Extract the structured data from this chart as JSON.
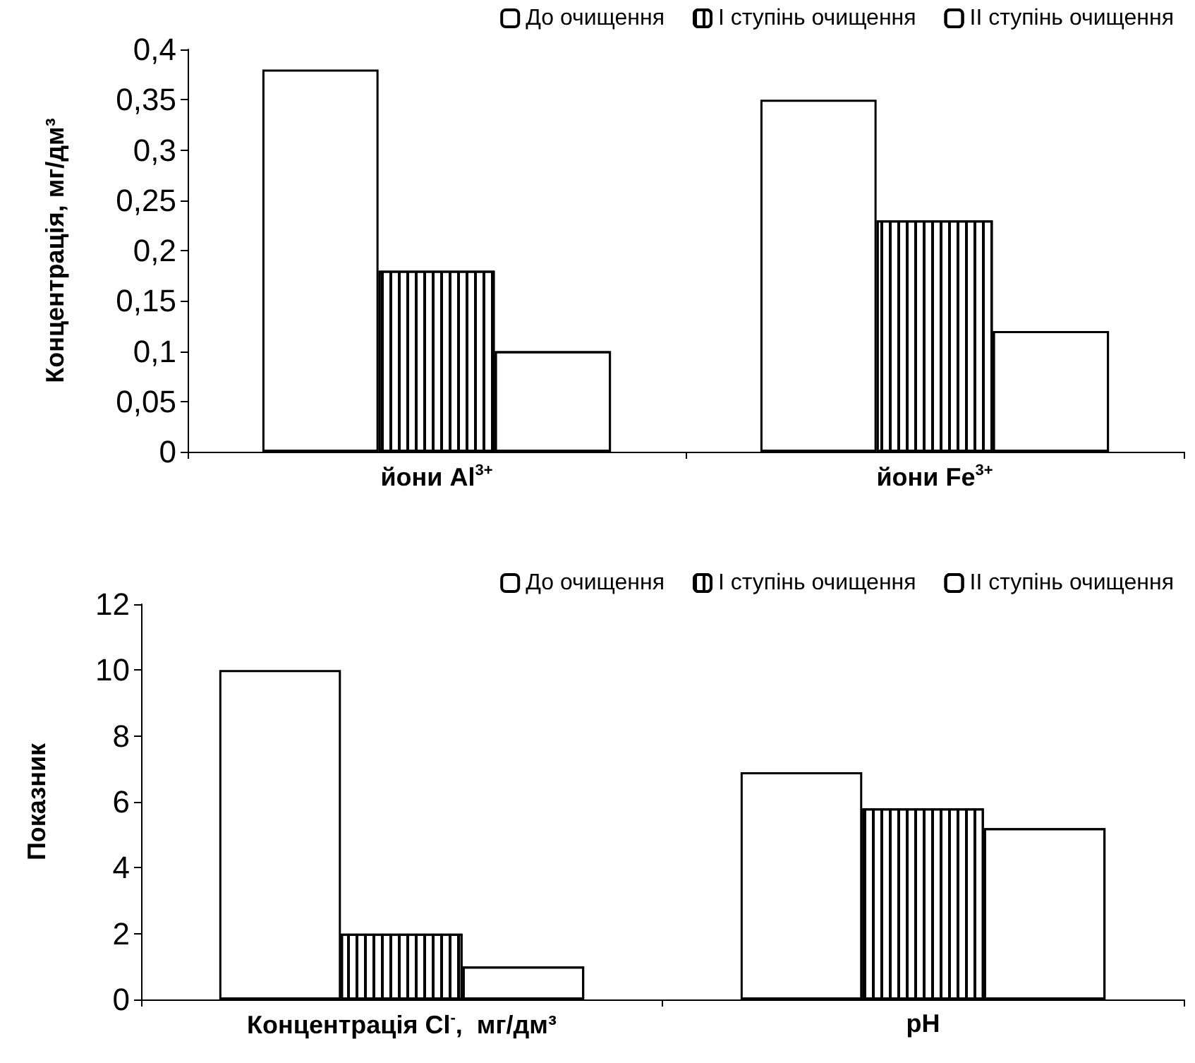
{
  "chart_data": [
    {
      "type": "bar",
      "ylabel": "Концентрація, мг/дм³",
      "categories": [
        "йони Al$^{3+}$",
        "йони Fe$^{3+}$"
      ],
      "series": [
        {
          "name": "До очищення",
          "color": "#ffffff",
          "values": [
            0.38,
            0.35
          ]
        },
        {
          "name": "I ступінь очищення",
          "color": "#ffffff",
          "values": [
            0.18,
            0.23
          ]
        },
        {
          "name": "II ступінь очищення",
          "color": "#ffffff",
          "values": [
            0.1,
            0.12
          ]
        }
      ],
      "ylim": [
        0,
        0.4
      ],
      "yticks": [
        0,
        {
          "value": 0.05,
          "label": "0,05"
        },
        {
          "value": 0.1,
          "label": "0,1"
        },
        {
          "value": 0.15,
          "label": "0,15"
        },
        {
          "value": 0.2,
          "label": "0,2"
        },
        {
          "value": 0.25,
          "label": "0,25"
        },
        {
          "value": 0.3,
          "label": "0,3"
        },
        {
          "value": 0.35,
          "label": "0,35"
        },
        {
          "value": 0.4,
          "label": "0,4"
        }
      ],
      "grid": false,
      "legend": "top right"
    },
    {
      "type": "bar",
      "ylabel": "Показник",
      "categories": [
        "Концентрація Cl$^{-}$,  мг/дм³",
        "pH"
      ],
      "series": [
        {
          "name": "До очищення",
          "color": "#ffffff",
          "values": [
            10,
            6.9
          ]
        },
        {
          "name": "I ступінь очищення",
          "color": "#ffffff",
          "values": [
            2,
            5.8
          ]
        },
        {
          "name": "II ступінь очищення",
          "color": "#ffffff",
          "values": [
            1,
            5.2
          ]
        }
      ],
      "ylim": [
        0,
        12
      ],
      "yticks": [
        0,
        2,
        4,
        6,
        8,
        10,
        12
      ],
      "grid": false,
      "legend": "top right"
    }
  ]
}
